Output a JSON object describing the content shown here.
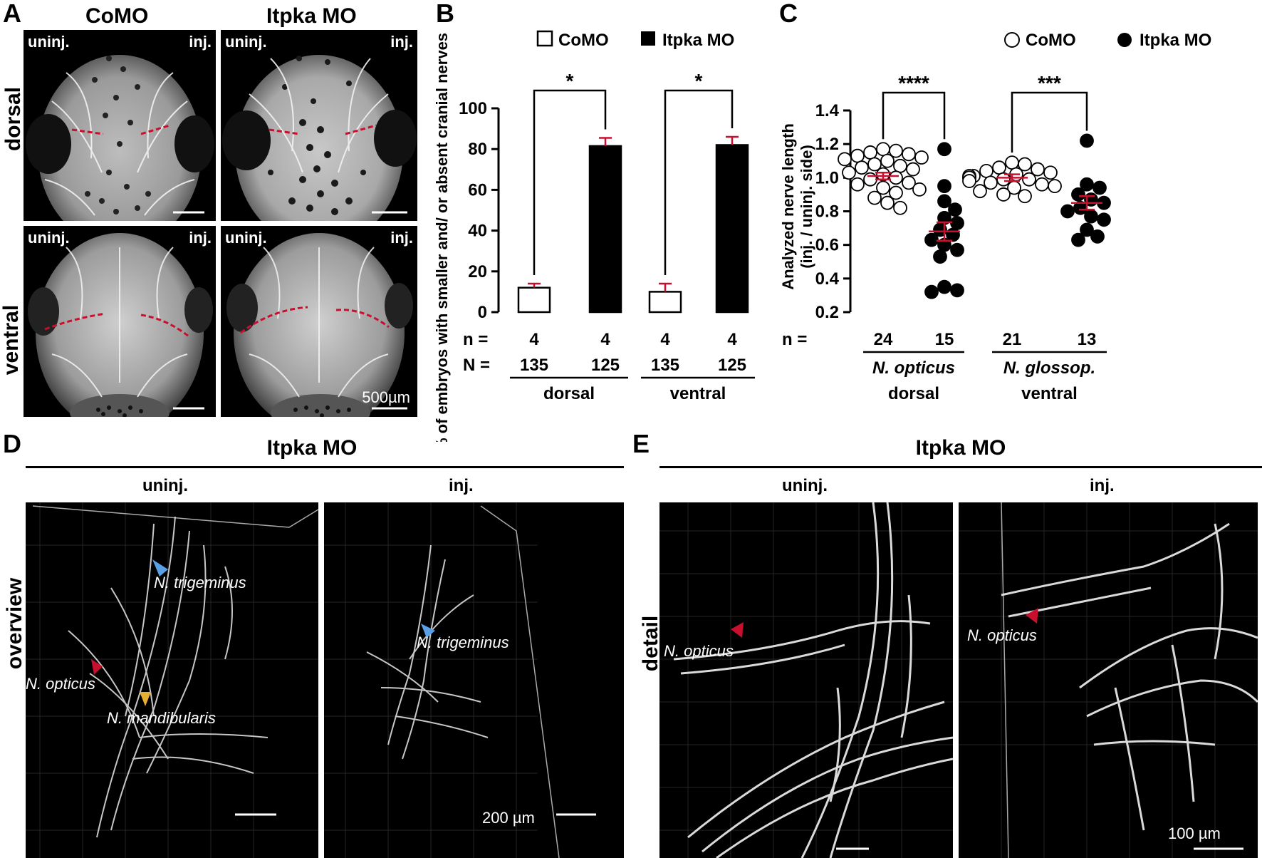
{
  "panel_letters": {
    "a": "A",
    "b": "B",
    "c": "C",
    "d": "D",
    "e": "E"
  },
  "panelA": {
    "col_como": "CoMO",
    "col_itpka": "Itpka MO",
    "row_dorsal": "dorsal",
    "row_ventral": "ventral",
    "uninj": "uninj.",
    "inj": "inj.",
    "scale_label": "500µm"
  },
  "chart_data": [
    {
      "type": "bar",
      "panel": "B",
      "legend": [
        "CoMO",
        "Itpka MO"
      ],
      "ylabel": "% of embryos with smaller and/ or absent cranial nerves",
      "ylim": [
        0,
        100
      ],
      "yticks": [
        "0",
        "20",
        "40",
        "60",
        "80",
        "100"
      ],
      "groups": [
        "dorsal",
        "ventral"
      ],
      "series": [
        {
          "name": "CoMO",
          "values": [
            12,
            10
          ],
          "errors": [
            2,
            4
          ],
          "color": "#ffffff"
        },
        {
          "name": "Itpka MO",
          "values": [
            81.5,
            82
          ],
          "errors": [
            4,
            4
          ],
          "color": "#000000"
        }
      ],
      "significance": [
        "*",
        "*"
      ],
      "n_label": "n =",
      "N_label": "N =",
      "n_values": [
        "4",
        "4",
        "4",
        "4"
      ],
      "N_values": [
        "135",
        "125",
        "135",
        "125"
      ]
    },
    {
      "type": "scatter",
      "panel": "C",
      "legend": [
        "CoMO",
        "Itpka MO"
      ],
      "ylabel_1": "Analyzed nerve length",
      "ylabel_2": "(inj. / uninj. side)",
      "ylim": [
        0.2,
        1.4
      ],
      "yticks": [
        "0.2",
        "0.4",
        "0.6",
        "0.8",
        "1.0",
        "1.2",
        "1.4"
      ],
      "groups": [
        {
          "name": "CoMO dorsal",
          "mean": 1.01,
          "sem": 0.02,
          "filled": false,
          "values": [
            1.17,
            1.16,
            1.15,
            1.14,
            1.13,
            1.12,
            1.11,
            1.1,
            1.08,
            1.07,
            1.06,
            1.05,
            1.03,
            1.02,
            1.0,
            0.99,
            0.97,
            0.96,
            0.94,
            0.93,
            0.91,
            0.88,
            0.85,
            0.82
          ]
        },
        {
          "name": "Itpka MO dorsal",
          "mean": 0.68,
          "sem": 0.055,
          "filled": true,
          "values": [
            1.17,
            0.95,
            0.86,
            0.81,
            0.76,
            0.73,
            0.69,
            0.66,
            0.63,
            0.6,
            0.57,
            0.53,
            0.35,
            0.33,
            0.32
          ]
        },
        {
          "name": "CoMO ventral",
          "mean": 1.0,
          "sem": 0.02,
          "filled": false,
          "values": [
            1.09,
            1.08,
            1.06,
            1.05,
            1.04,
            1.03,
            1.02,
            1.01,
            1.01,
            1.0,
            1.0,
            0.99,
            0.99,
            0.98,
            0.97,
            0.96,
            0.95,
            0.94,
            0.92,
            0.9,
            0.89
          ]
        },
        {
          "name": "Itpka MO ventral",
          "mean": 0.85,
          "sem": 0.04,
          "filled": true,
          "values": [
            1.22,
            0.96,
            0.94,
            0.9,
            0.87,
            0.85,
            0.82,
            0.8,
            0.77,
            0.75,
            0.69,
            0.65,
            0.63
          ]
        }
      ],
      "significance": [
        "****",
        "***"
      ],
      "n_label": "n =",
      "n_values": [
        "24",
        "15",
        "21",
        "13"
      ],
      "nerve_labels": [
        "N. opticus",
        "N. glossop."
      ],
      "region_labels": [
        "dorsal",
        "ventral"
      ]
    }
  ],
  "panelD": {
    "title": "Itpka MO",
    "uninj": "uninj.",
    "inj": "inj.",
    "row_label": "overview",
    "label_trigeminus": "N. trigeminus",
    "label_opticus": "N. opticus",
    "label_mandibularis": "N. mandibularis",
    "scale_label": "200 µm"
  },
  "panelE": {
    "title": "Itpka MO",
    "uninj": "uninj.",
    "inj": "inj.",
    "row_label": "detail",
    "label_opticus": "N. opticus",
    "scale_label": "100 µm"
  },
  "colors": {
    "accent_red": "#c8102e",
    "arrow_blue": "#5aa0e6",
    "arrow_yellow": "#e8b030"
  }
}
